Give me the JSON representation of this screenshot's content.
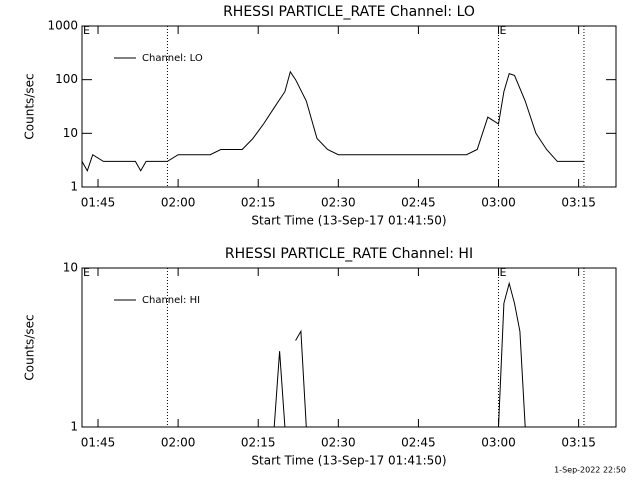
{
  "chart_data": [
    {
      "type": "line",
      "title": "RHESSI PARTICLE_RATE Channel: LO",
      "xlabel": "Start Time (13-Sep-17 01:41:50)",
      "ylabel": "Counts/sec",
      "x": [
        "01:42",
        "01:43",
        "01:44",
        "01:46",
        "01:48",
        "01:50",
        "01:52",
        "01:53",
        "01:54",
        "01:56",
        "01:58",
        "02:00",
        "02:02",
        "02:04",
        "02:06",
        "02:08",
        "02:10",
        "02:12",
        "02:14",
        "02:16",
        "02:18",
        "02:20",
        "02:21",
        "02:22",
        "02:24",
        "02:26",
        "02:28",
        "02:30",
        "02:34",
        "02:38",
        "02:42",
        "02:46",
        "02:50",
        "02:54",
        "02:56",
        "02:58",
        "03:00",
        "03:01",
        "03:02",
        "03:03",
        "03:05",
        "03:07",
        "03:09",
        "03:11",
        "03:13",
        "03:15",
        "03:16"
      ],
      "series": [
        {
          "name": "Channel: LO",
          "color": "#000000",
          "values": [
            3,
            2,
            4,
            3,
            3,
            3,
            3,
            2,
            3,
            3,
            3,
            4,
            4,
            4,
            4,
            5,
            5,
            5,
            8,
            15,
            30,
            60,
            140,
            100,
            40,
            8,
            5,
            4,
            4,
            4,
            4,
            4,
            4,
            4,
            5,
            20,
            15,
            60,
            130,
            120,
            40,
            10,
            5,
            3,
            3,
            3,
            3
          ]
        }
      ],
      "xlim": [
        "01:42",
        "03:22"
      ],
      "xticks": [
        "01:45",
        "02:00",
        "02:15",
        "02:30",
        "02:45",
        "03:00",
        "03:15"
      ],
      "ylim": [
        1,
        1000
      ],
      "yticks": [
        1,
        10,
        100,
        1000
      ],
      "log_y": true,
      "legend": "upper left",
      "markers": [
        "01:58",
        "03:00",
        "03:16"
      ],
      "annotations": [
        {
          "x": "01:42",
          "text": "E"
        },
        {
          "x": "03:00",
          "text": "E"
        }
      ]
    },
    {
      "type": "line",
      "title": "RHESSI PARTICLE_RATE Channel: HI",
      "xlabel": "Start Time (13-Sep-17 01:41:50)",
      "ylabel": "Counts/sec",
      "x": [
        "02:18",
        "02:19",
        "02:20",
        "02:21",
        "02:22",
        "02:23",
        "02:24",
        "02:25",
        "03:00",
        "03:01",
        "03:02",
        "03:03",
        "03:04",
        "03:05"
      ],
      "series": [
        {
          "name": "Channel: HI",
          "color": "#000000",
          "values": [
            1,
            3,
            1,
            null,
            3.5,
            4,
            1,
            null,
            1,
            6,
            8,
            6,
            4,
            1
          ]
        }
      ],
      "xlim": [
        "01:42",
        "03:22"
      ],
      "xticks": [
        "01:45",
        "02:00",
        "02:15",
        "02:30",
        "02:45",
        "03:00",
        "03:15"
      ],
      "ylim": [
        1,
        10
      ],
      "yticks": [
        1,
        10
      ],
      "log_y": true,
      "legend": "upper left",
      "markers": [
        "01:58",
        "03:00",
        "03:16"
      ],
      "annotations": [
        {
          "x": "01:42",
          "text": "E"
        },
        {
          "x": "03:00",
          "text": "E"
        }
      ]
    }
  ],
  "footer": "1-Sep-2022 22:50"
}
